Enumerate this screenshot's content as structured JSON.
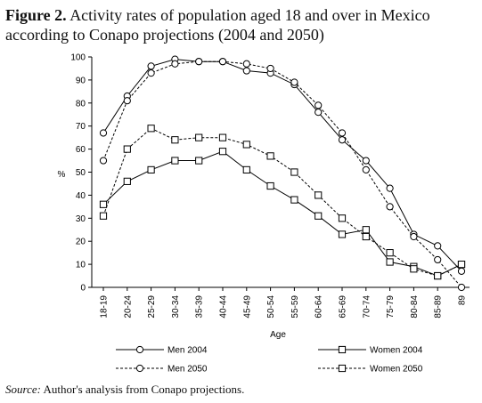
{
  "header": {
    "figure_label": "Figure 2.",
    "title": "Activity rates of population aged 18 and over in Mexico according to Conapo projections (2004 and 2050)"
  },
  "footer": {
    "source_label": "Source:",
    "source_text": "Author's analysis from Conapo projections."
  },
  "chart_data": {
    "type": "line",
    "xlabel": "Age",
    "ylabel": "%",
    "ylim": [
      0,
      100
    ],
    "yticks": [
      0,
      10,
      20,
      30,
      40,
      50,
      60,
      70,
      80,
      90,
      100
    ],
    "categories": [
      "18-19",
      "20-24",
      "25-29",
      "30-34",
      "35-39",
      "40-44",
      "45-49",
      "50-54",
      "55-59",
      "60-64",
      "65-69",
      "70-74",
      "75-79",
      "80-84",
      "85-89",
      "89"
    ],
    "grid": false,
    "legend_position": "bottom",
    "series": [
      {
        "name": "Men 2004",
        "marker": "circle",
        "dash": false,
        "values": [
          67,
          83,
          96,
          99,
          98,
          98,
          94,
          93,
          88,
          76,
          64,
          55,
          43,
          23,
          18,
          7
        ]
      },
      {
        "name": "Men 2050",
        "marker": "circle",
        "dash": true,
        "values": [
          55,
          81,
          93,
          97,
          98,
          98,
          97,
          95,
          89,
          79,
          67,
          51,
          35,
          22,
          12,
          0
        ]
      },
      {
        "name": "Women 2004",
        "marker": "square",
        "dash": false,
        "values": [
          36,
          46,
          51,
          55,
          55,
          59,
          51,
          44,
          38,
          31,
          23,
          25,
          11,
          9,
          5,
          10
        ]
      },
      {
        "name": "Women  2050",
        "marker": "square",
        "dash": true,
        "values": [
          31,
          60,
          69,
          64,
          65,
          65,
          62,
          57,
          50,
          40,
          30,
          22,
          15,
          8,
          5,
          10
        ]
      }
    ]
  }
}
